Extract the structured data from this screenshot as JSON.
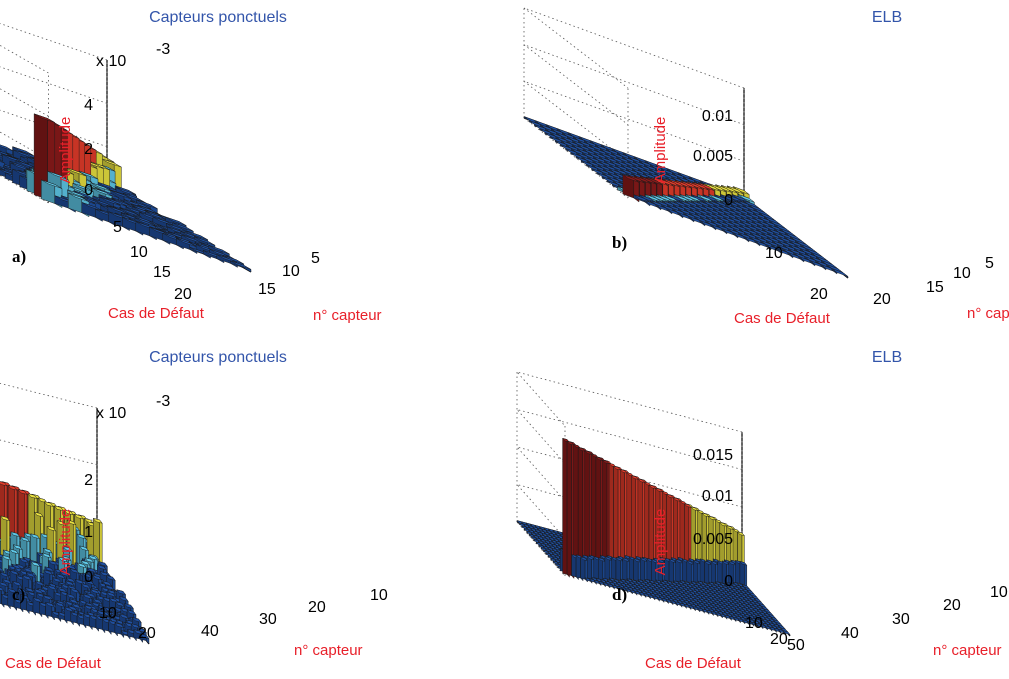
{
  "chart_data": [
    {
      "panel_label": "a)",
      "type": "bar3d",
      "title": "Capteurs ponctuels",
      "xlabel": "Cas de Défaut",
      "ylabel": "n° capteur",
      "zlabel": "Amplitude",
      "multiplier": "x 10",
      "multiplier_exp": "-3",
      "n_cases": 20,
      "n_sensors": 15,
      "case_ticks": [
        "5",
        "10",
        "15",
        "20"
      ],
      "sensor_ticks": [
        "5",
        "10",
        "15"
      ],
      "z_ticks": [
        "0",
        "2",
        "4"
      ],
      "zlim": [
        0,
        4.5
      ],
      "diagonal_peak": 2.7,
      "background_level": 0.6
    },
    {
      "panel_label": "b)",
      "type": "bar3d",
      "title": "ELB",
      "xlabel": "Cas de Défaut",
      "ylabel": "n° capteur",
      "zlabel": "Amplitude",
      "n_cases": 20,
      "n_sensors": 20,
      "case_ticks": [
        "10",
        "20"
      ],
      "sensor_ticks": [
        "5",
        "10",
        "15",
        "20"
      ],
      "z_ticks": [
        "0",
        "0.005",
        "0.01"
      ],
      "zlim": [
        0,
        0.012
      ],
      "diagonal_peak": 0.0028,
      "background_level": 0.0001
    },
    {
      "panel_label": "c)",
      "type": "bar3d",
      "title": "Capteurs ponctuels",
      "xlabel": "Cas de Défaut",
      "ylabel": "n° capteur",
      "zlabel": "Amplitude",
      "multiplier": "x 10",
      "multiplier_exp": "-3",
      "n_cases": 20,
      "n_sensors": 45,
      "case_ticks": [
        "10",
        "20"
      ],
      "sensor_ticks": [
        "10",
        "20",
        "30",
        "40"
      ],
      "z_ticks": [
        "0",
        "1",
        "2"
      ],
      "zlim": [
        0,
        2.8
      ],
      "diagonal_peak": 2.4,
      "background_level": 0.6
    },
    {
      "panel_label": "d)",
      "type": "bar3d",
      "title": "ELB",
      "xlabel": "Cas de Défaut",
      "ylabel": "n° capteur",
      "zlabel": "Amplitude",
      "n_cases": 20,
      "n_sensors": 50,
      "case_ticks": [
        "10",
        "20"
      ],
      "sensor_ticks": [
        "10",
        "20",
        "30",
        "40",
        "50"
      ],
      "z_ticks": [
        "0",
        "0.005",
        "0.01",
        "0.015"
      ],
      "zlim": [
        0,
        0.016
      ],
      "diagonal_peak": 0.015,
      "background_level": 0.0002
    }
  ],
  "colors": {
    "peak": "#8b1a1a",
    "high": "#e23b2a",
    "mid": "#e8e040",
    "low": "#5ec8e8",
    "base": "#1f4fa0"
  }
}
